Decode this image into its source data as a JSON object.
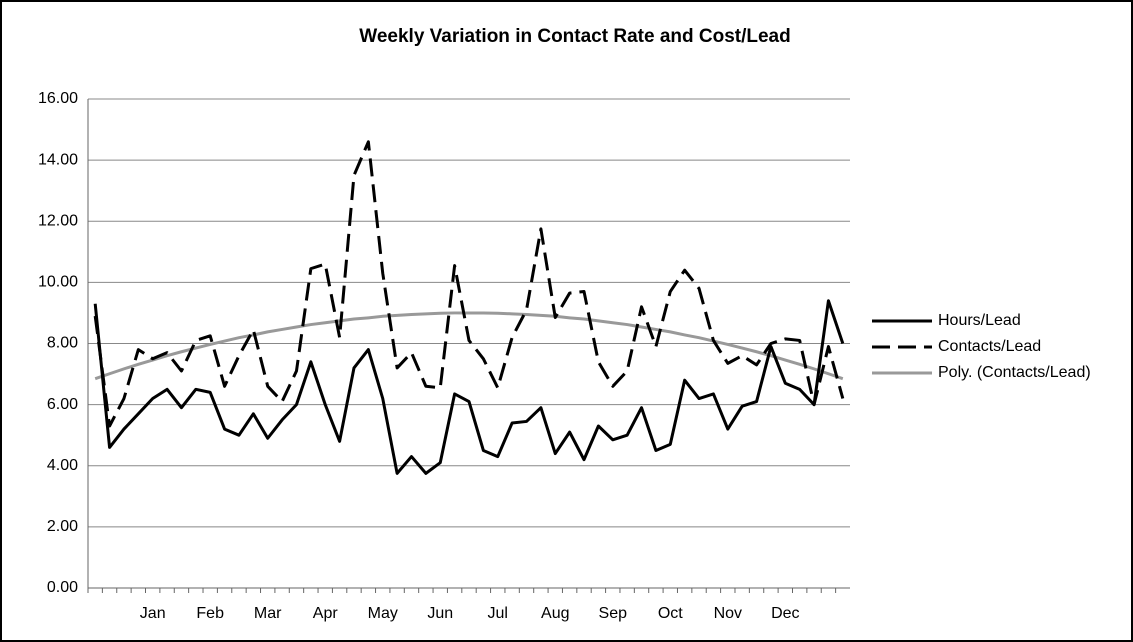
{
  "chart_data": {
    "type": "line",
    "title": "Weekly Variation in Contact Rate and Cost/Lead",
    "categories": [
      null,
      null,
      null,
      null,
      "Jan",
      null,
      null,
      null,
      "Feb",
      null,
      null,
      null,
      "Mar",
      null,
      null,
      null,
      "Apr",
      null,
      null,
      null,
      "May",
      null,
      null,
      null,
      "Jun",
      null,
      null,
      null,
      "Jul",
      null,
      null,
      null,
      "Aug",
      null,
      null,
      null,
      "Sep",
      null,
      null,
      null,
      "Oct",
      null,
      null,
      null,
      "Nov",
      null,
      null,
      null,
      "Dec",
      null,
      null,
      null,
      null
    ],
    "series": [
      {
        "name": "Hours/Lead",
        "color": "#000000",
        "dash": false,
        "values": [
          9.3,
          4.6,
          5.2,
          5.7,
          6.2,
          6.5,
          5.9,
          6.5,
          6.4,
          5.2,
          5.0,
          5.7,
          4.9,
          5.5,
          6.0,
          7.4,
          6.0,
          4.8,
          7.2,
          7.8,
          6.2,
          3.75,
          4.3,
          3.75,
          4.1,
          6.35,
          6.1,
          4.5,
          4.3,
          5.4,
          5.45,
          5.9,
          4.4,
          5.1,
          4.2,
          5.3,
          4.85,
          5.0,
          5.9,
          4.5,
          4.7,
          6.8,
          6.2,
          6.35,
          5.2,
          5.95,
          6.1,
          7.9,
          6.7,
          6.5,
          6.0,
          9.4,
          8.0
        ]
      },
      {
        "name": "Contacts/Lead",
        "color": "#000000",
        "dash": true,
        "values": [
          8.9,
          5.3,
          6.2,
          7.8,
          7.5,
          7.7,
          7.1,
          8.1,
          8.25,
          6.6,
          7.6,
          8.45,
          6.6,
          6.1,
          7.1,
          10.45,
          10.6,
          8.2,
          13.5,
          14.6,
          10.3,
          7.2,
          7.7,
          6.6,
          6.55,
          10.55,
          8.1,
          7.5,
          6.55,
          8.2,
          9.1,
          11.75,
          8.85,
          9.65,
          9.7,
          7.4,
          6.6,
          7.1,
          9.2,
          7.9,
          9.7,
          10.4,
          9.8,
          8.1,
          7.35,
          7.6,
          7.3,
          8.0,
          8.15,
          8.1,
          6.0,
          7.9,
          6.2
        ]
      },
      {
        "name": "Poly. (Contacts/Lead)",
        "color": "#999999",
        "dash": false,
        "values": [
          6.85,
          7.01,
          7.17,
          7.32,
          7.46,
          7.6,
          7.73,
          7.85,
          7.97,
          8.08,
          8.19,
          8.28,
          8.38,
          8.46,
          8.54,
          8.62,
          8.68,
          8.74,
          8.8,
          8.84,
          8.89,
          8.92,
          8.95,
          8.97,
          8.99,
          9.0,
          9.0,
          9.0,
          8.99,
          8.97,
          8.95,
          8.92,
          8.89,
          8.84,
          8.8,
          8.74,
          8.68,
          8.62,
          8.54,
          8.46,
          8.38,
          8.28,
          8.19,
          8.08,
          7.97,
          7.85,
          7.73,
          7.6,
          7.46,
          7.32,
          7.17,
          7.01,
          6.85
        ]
      }
    ],
    "ylim": [
      0,
      16
    ],
    "yticks": [
      {
        "value": 0,
        "label": "0.00"
      },
      {
        "value": 2,
        "label": "2.00"
      },
      {
        "value": 4,
        "label": "4.00"
      },
      {
        "value": 6,
        "label": "6.00"
      },
      {
        "value": 8,
        "label": "8.00"
      },
      {
        "value": 10,
        "label": "10.00"
      },
      {
        "value": 12,
        "label": "12.00"
      },
      {
        "value": 14,
        "label": "14.00"
      },
      {
        "value": 16,
        "label": "16.00"
      }
    ],
    "grid": true,
    "legend": "right"
  }
}
